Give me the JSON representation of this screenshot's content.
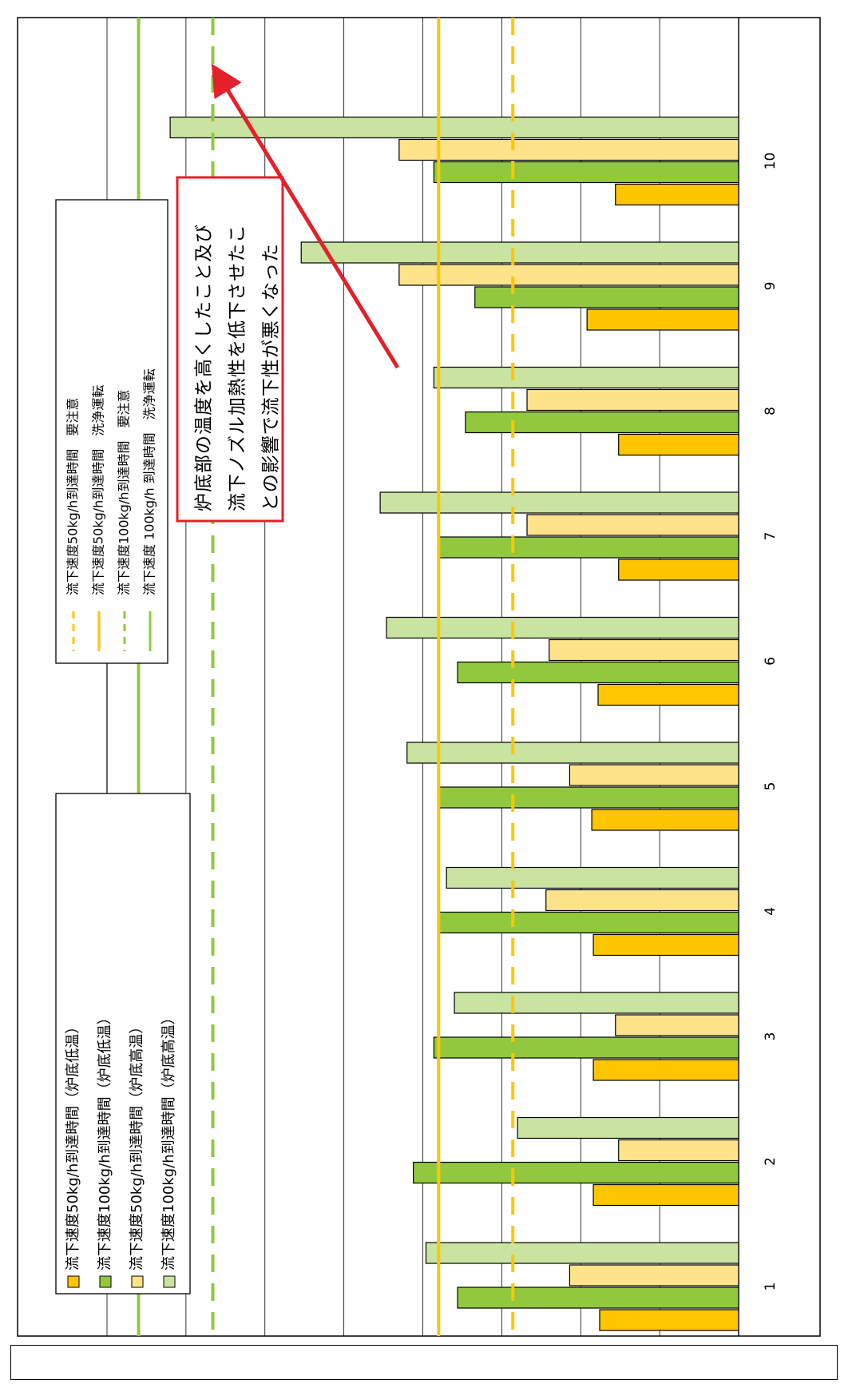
{
  "chart_data": {
    "type": "bar",
    "orientation": "rotated-90-clockwise",
    "categories": [
      "1",
      "2",
      "3",
      "4",
      "5",
      "6",
      "7",
      "8",
      "9",
      "10"
    ],
    "series": [
      {
        "name": "流下速度50kg/h到達時間（炉底低温）",
        "color": "#FFC600",
        "values": [
          8.8,
          9.2,
          9.2,
          9.2,
          9.3,
          8.9,
          7.6,
          7.6,
          9.6,
          7.8
        ]
      },
      {
        "name": "流下速度100kg/h到達時間（炉底低温）",
        "color": "#92C83E",
        "values": [
          17.8,
          20.6,
          19.3,
          19.0,
          19.0,
          17.8,
          19.0,
          17.3,
          16.7,
          19.3
        ]
      },
      {
        "name": "流下速度50kg/h到達時間（炉底高温）",
        "color": "#FFE38A",
        "values": [
          10.7,
          7.6,
          7.8,
          12.2,
          10.7,
          12.0,
          13.4,
          13.4,
          21.5,
          21.5
        ]
      },
      {
        "name": "流下速度100kg/h到達時間（炉底高温）",
        "color": "#C9E3A1",
        "values": [
          19.8,
          14.0,
          18.0,
          18.5,
          21.0,
          22.3,
          22.7,
          19.3,
          27.7,
          36.0
        ]
      }
    ],
    "reference_lines": [
      {
        "label": "流下速度50kg/h到達時間　要注意",
        "value": 14.3,
        "color": "#FFC600",
        "style": "dashed"
      },
      {
        "label": "流下速度50kg/h到達時間　洗浄運転",
        "value": 19.0,
        "color": "#FFC600",
        "style": "solid"
      },
      {
        "label": "流下速度100kg/h到達時間　要注意",
        "value": 33.3,
        "color": "#92C83E",
        "style": "dashed"
      },
      {
        "label": "流下速度 100kg/h 到達時間　洗浄運転",
        "value": 38.0,
        "color": "#92C83E",
        "style": "solid"
      }
    ],
    "ylim": [
      0,
      42
    ],
    "gridlines": [
      5,
      10,
      15,
      20,
      25,
      30,
      35,
      40
    ],
    "grid": true,
    "legend_bars": [
      "流下速度50kg/h到達時間（炉底低温）",
      "流下速度100kg/h到達時間（炉底低温）",
      "流下速度50kg/h到達時間（炉底高温）",
      "流下速度100kg/h到達時間（炉底高温）"
    ],
    "legend_lines": [
      "流下速度50kg/h到達時間　要注意",
      "流下速度50kg/h到達時間　洗浄運転",
      "流下速度100kg/h到達時間　要注意",
      "流下速度 100kg/h 到達時間　洗浄運転"
    ],
    "annotation": {
      "lines": [
        "炉底部の温度を高くしたこと及び",
        "流下ノズル加熱性を低下させたこ",
        "との影響で流下性が悪くなった"
      ],
      "box_color": "#E4202A",
      "arrow_color": "#E4202A"
    }
  },
  "footer": {
    "text": ""
  }
}
